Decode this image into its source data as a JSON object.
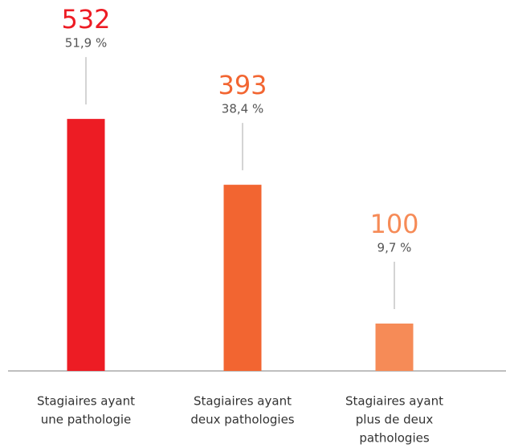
{
  "chart_data": {
    "type": "bar",
    "categories": [
      [
        "Stagiaires ayant",
        "une pathologie"
      ],
      [
        "Stagiaires ayant",
        "deux pathologies"
      ],
      [
        "Stagiaires ayant",
        "plus de deux",
        "pathologies"
      ]
    ],
    "values": [
      532,
      393,
      100
    ],
    "shares": [
      51.9,
      38.4,
      9.7
    ],
    "share_labels": [
      "51,9 %",
      "38,4 %",
      "9,7 %"
    ],
    "colors": [
      "#ed1c24",
      "#f26531",
      "#f68b57"
    ],
    "ylim": [
      0,
      600
    ]
  }
}
